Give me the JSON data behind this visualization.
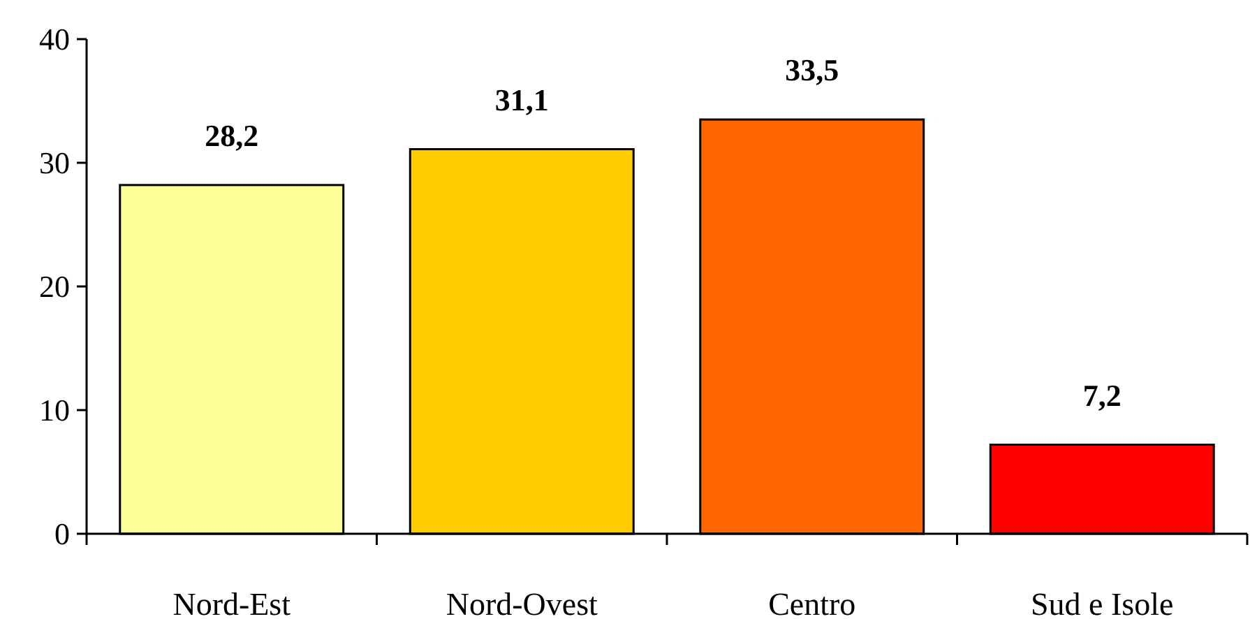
{
  "chart_data": {
    "type": "bar",
    "categories": [
      "Nord-Est",
      "Nord-Ovest",
      "Centro",
      "Sud e Isole"
    ],
    "values": [
      28.2,
      31.1,
      33.5,
      7.2
    ],
    "colors": [
      "#ffff99",
      "#ffcc00",
      "#ff6600",
      "#ff0000"
    ],
    "value_labels": [
      "28,2",
      "31,1",
      "33,5",
      "7,2"
    ],
    "ylim": [
      0,
      40
    ],
    "yticks": [
      0,
      10,
      20,
      30,
      40
    ]
  }
}
